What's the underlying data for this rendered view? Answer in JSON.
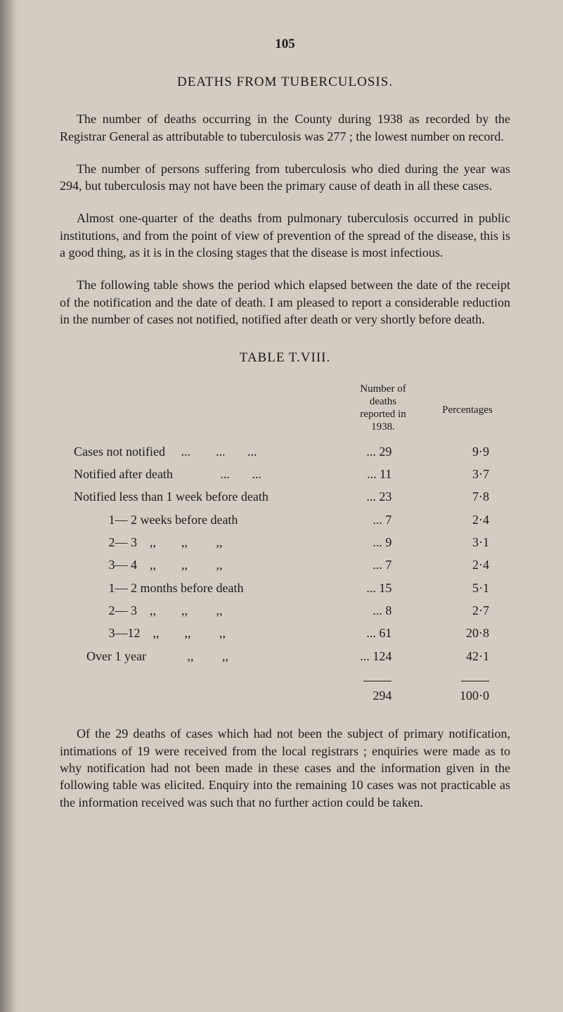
{
  "page_number": "105",
  "title": "DEATHS FROM TUBERCULOSIS.",
  "para1": "The number of deaths occurring in the County during 1938 as recorded by the Registrar General as attributable to tuberculosis was 277 ; the lowest number on record.",
  "para2": "The number of persons suffering from tuberculosis who died during the year was 294, but tuberculosis may not have been the primary cause of death in all these cases.",
  "para3": "Almost one-quarter of the deaths from pulmonary tuberculosis occurred in public institutions, and from the point of view of prevention of the spread of the disease, this is a good thing, as it is in the closing stages that the disease is most infectious.",
  "para4": "The following table shows the period which elapsed between the date of the receipt of the notification and the date of death. I am pleased to report a considerable reduction in the number of cases not notified, notified after death or very shortly before death.",
  "table_title": "TABLE T.VIII.",
  "table_header_number": "Number of\ndeaths\nreported in\n1938.",
  "table_header_percent": "Percentages",
  "rows": [
    {
      "label": "Cases not notified     ...        ...       ...",
      "dots": "...",
      "number": "29",
      "percent": "9·9"
    },
    {
      "label": "Notified after death               ...       ...",
      "dots": "...",
      "number": "11",
      "percent": "3·7"
    },
    {
      "label": "Notified less than 1 week before death",
      "dots": "...",
      "number": "23",
      "percent": "7·8"
    },
    {
      "label": "           1— 2 weeks before death",
      "dots": "...",
      "number": "7",
      "percent": "2·4"
    },
    {
      "label": "           2— 3    ,,        ,,         ,,",
      "dots": "...",
      "number": "9",
      "percent": "3·1"
    },
    {
      "label": "           3— 4    ,,        ,,         ,,",
      "dots": "...",
      "number": "7",
      "percent": "2·4"
    },
    {
      "label": "           1— 2 months before death",
      "dots": "...",
      "number": "15",
      "percent": "5·1"
    },
    {
      "label": "           2— 3    ,,        ,,         ,,",
      "dots": "...",
      "number": "8",
      "percent": "2·7"
    },
    {
      "label": "           3—12    ,,        ,,         ,,",
      "dots": "...",
      "number": "61",
      "percent": "20·8"
    },
    {
      "label": "    Over 1 year             ,,         ,,",
      "dots": "...",
      "number": "124",
      "percent": "42·1"
    }
  ],
  "total": {
    "number": "294",
    "percent": "100·0"
  },
  "para5": "Of the 29 deaths of cases which had not been the subject of primary notification, intimations of 19 were received from the local registrars ; enquiries were made as to why notification had not been made in these cases and the information given in the following table was elicited. Enquiry into the remaining 10 cases was not practicable as the information received was such that no further action could be taken.",
  "colors": {
    "background": "#d4ccc0",
    "text": "#1a1a1a"
  },
  "typography": {
    "body_fontsize": 18,
    "title_fontsize": 19,
    "header_fontsize": 15,
    "font_family": "Times New Roman"
  }
}
